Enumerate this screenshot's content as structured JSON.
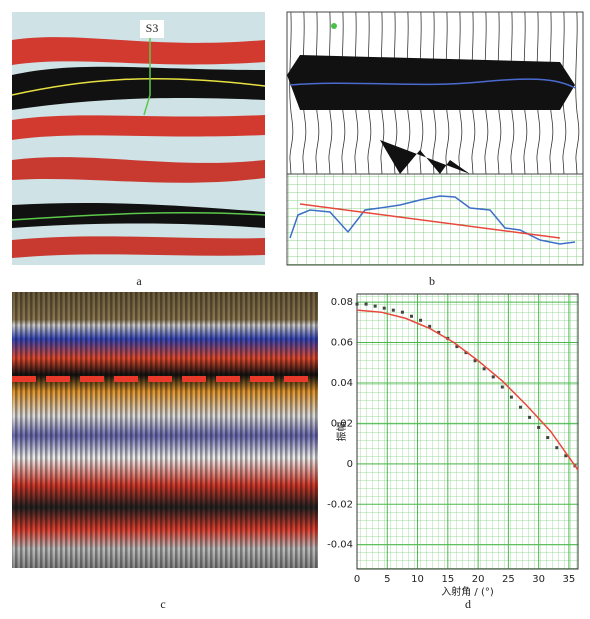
{
  "panel_labels": [
    "a",
    "b",
    "c",
    "d"
  ],
  "annotation": "S3",
  "chart_data": {
    "type": "scatter",
    "ylabel": "振幅",
    "xlabel": "入射角 / (°)",
    "xlim": [
      0,
      36.5
    ],
    "ylim": [
      -0.052,
      0.084
    ],
    "xticks": [
      0,
      5,
      10,
      15,
      20,
      25,
      30,
      35
    ],
    "yticks": [
      -0.04,
      -0.02,
      0,
      0.02,
      0.04,
      0.06,
      0.08
    ],
    "grid": true,
    "series": [
      {
        "kind": "points",
        "color": "#444444",
        "x": [
          0,
          1.5,
          3,
          4.5,
          6,
          7.5,
          9,
          10.5,
          12,
          13.5,
          15,
          16.5,
          18,
          19.5,
          21,
          22.5,
          24,
          25.5,
          27,
          28.5,
          30,
          31.5,
          33,
          34.5,
          36
        ],
        "values": [
          0.079,
          0.079,
          0.078,
          0.077,
          0.076,
          0.075,
          0.073,
          0.071,
          0.068,
          0.065,
          0.062,
          0.058,
          0.055,
          0.051,
          0.047,
          0.043,
          0.038,
          0.033,
          0.028,
          0.023,
          0.018,
          0.013,
          0.008,
          0.004,
          -0.001
        ]
      },
      {
        "kind": "line",
        "color": "#e8473c",
        "x": [
          0,
          4,
          8,
          12,
          16,
          20,
          24,
          28,
          32,
          36.5
        ],
        "values": [
          0.076,
          0.075,
          0.072,
          0.067,
          0.06,
          0.051,
          0.041,
          0.029,
          0.016,
          -0.003
        ]
      }
    ]
  }
}
